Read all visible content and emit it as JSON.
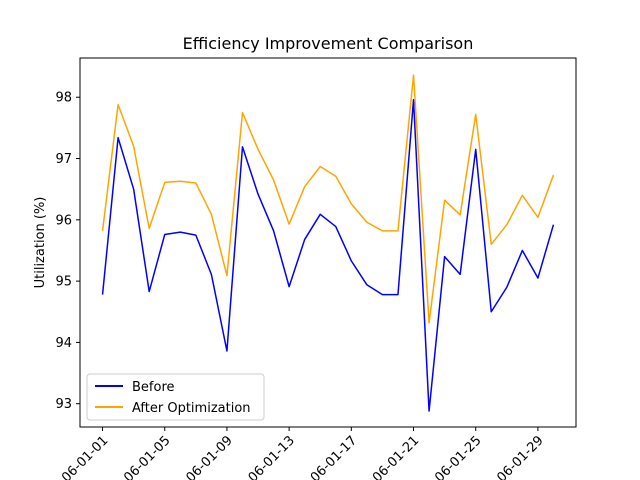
{
  "chart_data": {
    "type": "line",
    "title": "Efficiency Improvement Comparison",
    "xlabel": "",
    "ylabel": "Utilization (%)",
    "x": [
      "2026-01-01",
      "2026-01-02",
      "2026-01-03",
      "2026-01-04",
      "2026-01-05",
      "2026-01-06",
      "2026-01-07",
      "2026-01-08",
      "2026-01-09",
      "2026-01-10",
      "2026-01-11",
      "2026-01-12",
      "2026-01-13",
      "2026-01-14",
      "2026-01-15",
      "2026-01-16",
      "2026-01-17",
      "2026-01-18",
      "2026-01-19",
      "2026-01-20",
      "2026-01-21",
      "2026-01-22",
      "2026-01-23",
      "2026-01-24",
      "2026-01-25",
      "2026-01-26",
      "2026-01-27",
      "2026-01-28",
      "2026-01-29",
      "2026-01-30"
    ],
    "xticks": [
      "2026-01-01",
      "2026-01-05",
      "2026-01-09",
      "2026-01-13",
      "2026-01-17",
      "2026-01-21",
      "2026-01-25",
      "2026-01-29"
    ],
    "xtick_labels": [
      "06-01-01",
      "06-01-05",
      "06-01-09",
      "06-01-13",
      "06-01-17",
      "06-01-21",
      "06-01-25",
      "06-01-29"
    ],
    "yticks": [
      93,
      94,
      95,
      96,
      97,
      98
    ],
    "ylim": [
      92.62,
      98.64
    ],
    "series": [
      {
        "name": "Before",
        "color": "#0000ff",
        "values": [
          94.78,
          97.34,
          96.5,
          94.83,
          95.76,
          95.8,
          95.75,
          95.11,
          93.86,
          97.19,
          96.42,
          95.82,
          94.91,
          95.68,
          96.09,
          95.89,
          95.33,
          94.94,
          94.78,
          94.78,
          97.96,
          92.88,
          95.4,
          95.11,
          97.15,
          94.5,
          94.9,
          95.5,
          95.05,
          95.92
        ]
      },
      {
        "name": "After Optimization",
        "color": "#ffa500",
        "values": [
          95.82,
          97.88,
          97.2,
          95.86,
          96.61,
          96.63,
          96.6,
          96.09,
          95.09,
          97.75,
          97.15,
          96.65,
          95.93,
          96.54,
          96.87,
          96.71,
          96.26,
          95.96,
          95.82,
          95.82,
          98.36,
          94.32,
          96.32,
          96.08,
          97.72,
          95.6,
          95.92,
          96.4,
          96.04,
          96.73
        ]
      }
    ],
    "grid": false,
    "legend_position": "lower-left"
  }
}
